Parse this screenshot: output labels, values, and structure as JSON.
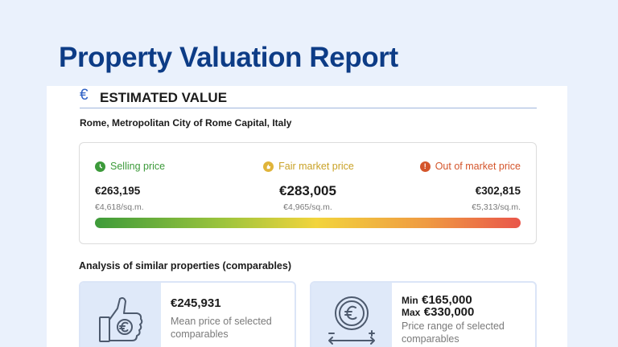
{
  "page": {
    "title": "Property Valuation Report"
  },
  "section": {
    "title": "ESTIMATED VALUE",
    "icon": "euro-icon",
    "location": "Rome, Metropolitan City of Rome Capital, Italy"
  },
  "prices": {
    "selling": {
      "label": "Selling price",
      "value": "€263,195",
      "per_sqm": "€4,618/sq.m.",
      "icon": "clock-icon",
      "color": "#3c9a3a"
    },
    "fair": {
      "label": "Fair market price",
      "value": "€283,005",
      "per_sqm": "€4,965/sq.m.",
      "icon": "thumb-icon",
      "color": "#e0b43a"
    },
    "out": {
      "label": "Out of market price",
      "value": "€302,815",
      "per_sqm": "€5,313/sq.m.",
      "icon": "exclamation-icon",
      "color": "#d4552b"
    }
  },
  "comparables": {
    "title": "Analysis of similar properties (comparables)",
    "mean": {
      "value": "€245,931",
      "description": "Mean price of selected comparables",
      "icon": "thumbs-up-euro-icon"
    },
    "range": {
      "min_label": "Min",
      "min_value": "€165,000",
      "max_label": "Max",
      "max_value": "€330,000",
      "description": "Price range of selected comparables",
      "icon": "euro-coin-range-icon"
    }
  }
}
